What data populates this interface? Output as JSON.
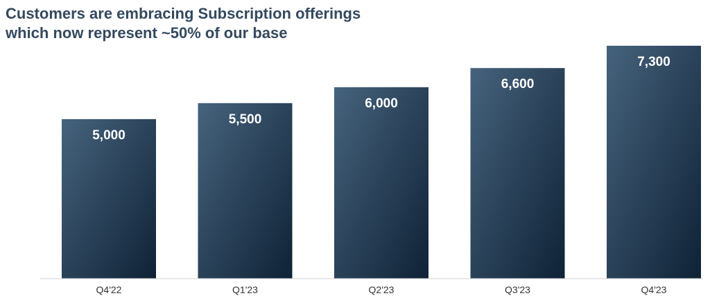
{
  "title": {
    "line1": "Customers are embracing Subscription offerings",
    "line2": "which now represent ~50% of our base"
  },
  "colors": {
    "title": "#34495e",
    "bar_top": "#46637d",
    "bar_bottom": "#0f2236",
    "baseline": "#d0d0d0",
    "value_label": "#ffffff",
    "tick_label": "#333333"
  },
  "chart_data": {
    "type": "bar",
    "title": "Customers are embracing Subscription offerings which now represent ~50% of our base",
    "categories": [
      "Q4'22",
      "Q1'23",
      "Q2'23",
      "Q3'23",
      "Q4'23"
    ],
    "values": [
      5000,
      5500,
      6000,
      6600,
      7300
    ],
    "value_labels": [
      "5,000",
      "5,500",
      "6,000",
      "6,600",
      "7,300"
    ],
    "xlabel": "",
    "ylabel": "",
    "ylim": [
      0,
      7300
    ],
    "grid": false,
    "legend": "none"
  }
}
